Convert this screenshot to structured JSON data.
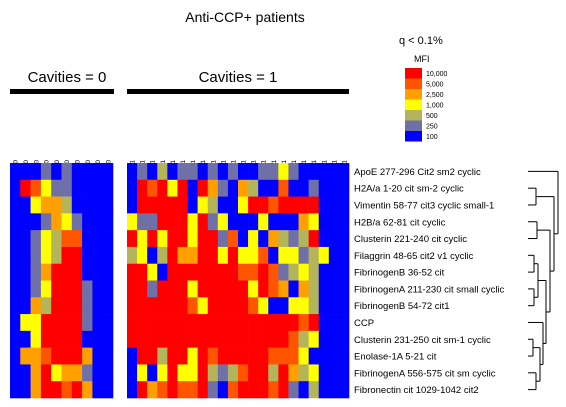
{
  "chart_data": {
    "type": "heatmap",
    "title": "Anti-CCP+ patients",
    "group_labels": [
      "Cavities = 0",
      "Cavities = 1"
    ],
    "columns": [
      [
        "SEJ1-1294_0",
        "SEJ1-1420_0",
        "SEJ1-1166_0",
        "SEJ1-1175_0",
        "SEJ1-1239_0",
        "SEJ1-1327_0",
        "SEJ1-1371_0",
        "SEJ1-1083_0",
        "SEJ1-1395_0",
        "SEJ1-1409_0"
      ],
      [
        "SEJ1-1018_1",
        "SEJ1-1066_1",
        "SEJ1-1176_1",
        "SEJ1-1198_1",
        "SEJ1-1279_1",
        "SEJ1-1313_1",
        "SEJ1-1317_1",
        "SEJ1-1326_1",
        "SEJ1-1360_1",
        "SEJ1-1403_1",
        "SEJ1-1444_1",
        "SEJ1-1445_1",
        "SEJ1-1386_1",
        "SEJ1-1032_1",
        "SEJ1-1099_1",
        "SEJ1-1344_1",
        "SEJ1-1370_1",
        "SEJ1-1418_1",
        "SEJ1-1435_1",
        "SEJ1-1440_1",
        "SEJ1-1335_1",
        "SEJ1-1307_1"
      ]
    ],
    "rows": [
      "ApoE 277-296 Cit2 sm2 cyclic",
      "H2A/a 1-20 cit sm-2 cyclic",
      "Vimentin 58-77 cit3 cyclic small-1",
      "H2B/a 62-81 cit cyclic",
      "Clusterin 221-240 cit cyclic",
      "Filaggrin 48-65 cit2 v1 cyclic",
      "FibrinogenB 36-52 cit",
      "FibrinogenA 211-230 cit small cyclic",
      "FibrinogenB 54-72 cit1",
      "CCP",
      "Clusterin 231-250 cit sm-1 cyclic",
      "Enolase-1A 5-21 cit",
      "FibrinogenA 556-575 cit sm cyclic",
      "Fibronectin cit 1029-1042 cit2"
    ],
    "values_note_levels": [
      100,
      250,
      500,
      1000,
      2500,
      5000,
      10000
    ],
    "matrix_group0": [
      [
        100,
        100,
        100,
        250,
        100,
        250,
        100,
        100,
        100,
        100
      ],
      [
        100,
        10000,
        5000,
        1000,
        250,
        250,
        100,
        100,
        100,
        100
      ],
      [
        100,
        100,
        1000,
        2500,
        2500,
        500,
        100,
        100,
        100,
        100
      ],
      [
        100,
        100,
        100,
        250,
        2500,
        1000,
        250,
        100,
        100,
        100
      ],
      [
        100,
        100,
        250,
        1000,
        500,
        5000,
        5000,
        100,
        100,
        100
      ],
      [
        100,
        100,
        250,
        1000,
        500,
        10000,
        10000,
        100,
        100,
        100
      ],
      [
        100,
        100,
        250,
        2500,
        10000,
        10000,
        10000,
        100,
        100,
        100
      ],
      [
        100,
        100,
        250,
        1000,
        10000,
        10000,
        10000,
        250,
        100,
        100
      ],
      [
        100,
        100,
        2500,
        500,
        10000,
        10000,
        10000,
        250,
        100,
        100
      ],
      [
        100,
        1000,
        1000,
        10000,
        10000,
        10000,
        10000,
        250,
        100,
        100
      ],
      [
        100,
        100,
        1000,
        10000,
        10000,
        10000,
        10000,
        100,
        100,
        100
      ],
      [
        100,
        2500,
        2500,
        5000,
        10000,
        10000,
        10000,
        2500,
        100,
        100
      ],
      [
        100,
        100,
        2500,
        10000,
        1000,
        2500,
        2500,
        250,
        100,
        100
      ],
      [
        100,
        100,
        2500,
        10000,
        10000,
        5000,
        10000,
        2500,
        100,
        100
      ]
    ],
    "matrix_group1": [
      [
        100,
        250,
        100,
        500,
        100,
        250,
        250,
        100,
        250,
        100,
        250,
        100,
        100,
        250,
        250,
        1000,
        250,
        100,
        100,
        100,
        100,
        100
      ],
      [
        100,
        10000,
        5000,
        10000,
        1000,
        10000,
        100,
        10000,
        2500,
        250,
        100,
        2500,
        500,
        100,
        100,
        5000,
        100,
        100,
        250,
        100,
        100,
        100
      ],
      [
        100,
        10000,
        10000,
        10000,
        10000,
        10000,
        100,
        1000,
        500,
        100,
        100,
        1000,
        10000,
        10000,
        5000,
        10000,
        10000,
        10000,
        10000,
        100,
        100,
        100
      ],
      [
        1000,
        250,
        250,
        10000,
        10000,
        10000,
        1000,
        10000,
        250,
        1000,
        100,
        100,
        100,
        1000,
        100,
        100,
        100,
        2500,
        1000,
        100,
        100,
        100
      ],
      [
        10000,
        1000,
        10000,
        1000,
        10000,
        10000,
        1000,
        10000,
        10000,
        250,
        5000,
        100,
        1000,
        100,
        2500,
        500,
        250,
        500,
        10000,
        100,
        100,
        100
      ],
      [
        500,
        1000,
        100,
        500,
        10000,
        2500,
        2500,
        10000,
        10000,
        1000,
        10000,
        1000,
        1000,
        5000,
        100,
        1000,
        1000,
        250,
        500,
        1000,
        100,
        100
      ],
      [
        10000,
        10000,
        1000,
        100,
        10000,
        10000,
        10000,
        10000,
        10000,
        10000,
        10000,
        5000,
        5000,
        10000,
        5000,
        250,
        500,
        1000,
        500,
        100,
        100,
        100
      ],
      [
        10000,
        10000,
        250,
        10000,
        10000,
        10000,
        1000,
        10000,
        10000,
        10000,
        10000,
        10000,
        1000,
        10000,
        5000,
        2500,
        100,
        2500,
        500,
        100,
        100,
        100
      ],
      [
        10000,
        10000,
        10000,
        10000,
        10000,
        10000,
        5000,
        1000,
        10000,
        10000,
        10000,
        10000,
        5000,
        1000,
        100,
        100,
        1000,
        1000,
        500,
        100,
        100,
        100
      ],
      [
        10000,
        10000,
        10000,
        10000,
        10000,
        10000,
        10000,
        10000,
        10000,
        10000,
        10000,
        10000,
        10000,
        10000,
        10000,
        10000,
        10000,
        5000,
        10000,
        100,
        100,
        100
      ],
      [
        10000,
        10000,
        10000,
        10000,
        10000,
        10000,
        10000,
        10000,
        10000,
        10000,
        10000,
        10000,
        10000,
        10000,
        10000,
        10000,
        5000,
        500,
        1000,
        100,
        100,
        100
      ],
      [
        100,
        10000,
        10000,
        500,
        10000,
        10000,
        1000,
        10000,
        5000,
        10000,
        10000,
        10000,
        10000,
        10000,
        5000,
        5000,
        5000,
        1000,
        100,
        100,
        100,
        100
      ],
      [
        100,
        1000,
        100,
        1000,
        10000,
        1000,
        1000,
        10000,
        500,
        250,
        500,
        5000,
        10000,
        10000,
        500,
        10000,
        2500,
        500,
        1000,
        100,
        100,
        100
      ],
      [
        100,
        10000,
        2500,
        5000,
        10000,
        5000,
        5000,
        10000,
        250,
        100,
        5000,
        10000,
        10000,
        10000,
        5000,
        10000,
        250,
        100,
        500,
        100,
        100,
        100
      ]
    ],
    "legend": {
      "significance_label": "q < 0.1%",
      "title": "MFI",
      "levels": [
        "10,000",
        "5,000",
        "2,500",
        "1,000",
        "500",
        "250",
        "100"
      ],
      "colors": [
        "#ff0000",
        "#ff5500",
        "#ffa000",
        "#ffff00",
        "#b4b45a",
        "#7070a8",
        "#0000ff"
      ]
    }
  }
}
